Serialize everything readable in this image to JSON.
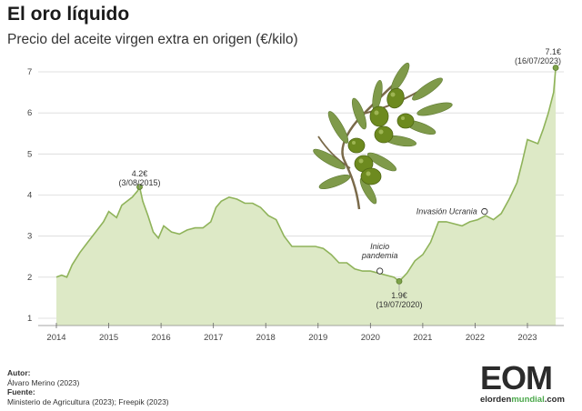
{
  "header": {
    "title": "El oro líquido",
    "subtitle": "Precio del aceite virgen extra en origen (€/kilo)"
  },
  "chart_data": {
    "type": "area",
    "title": "El oro líquido",
    "subtitle": "Precio del aceite virgen extra en origen (€/kilo)",
    "xlabel": "",
    "ylabel": "",
    "xlim": [
      2014,
      2023.55
    ],
    "ylim": [
      1,
      7.4
    ],
    "x_ticks": [
      "2014",
      "2015",
      "2016",
      "2017",
      "2018",
      "2019",
      "2020",
      "2021",
      "2022",
      "2023"
    ],
    "y_ticks": [
      "1",
      "2",
      "3",
      "4",
      "5",
      "6",
      "7"
    ],
    "grid": true,
    "fill_color": "#dde9c6",
    "line_color": "#8fb35a",
    "series": [
      {
        "x": [
          2014.0,
          2014.1,
          2014.2,
          2014.3,
          2014.45,
          2014.6,
          2014.75,
          2014.9,
          2015.0,
          2015.15,
          2015.25,
          2015.35,
          2015.45,
          2015.55,
          2015.59,
          2015.65,
          2015.75,
          2015.85,
          2015.95,
          2016.05,
          2016.2,
          2016.35,
          2016.5,
          2016.65,
          2016.8,
          2016.95,
          2017.05,
          2017.15,
          2017.3,
          2017.45,
          2017.6,
          2017.75,
          2017.9,
          2018.05,
          2018.2,
          2018.35,
          2018.5,
          2018.65,
          2018.8,
          2018.95,
          2019.1,
          2019.25,
          2019.4,
          2019.55,
          2019.7,
          2019.85,
          2020.0,
          2020.15,
          2020.3,
          2020.45,
          2020.55,
          2020.7,
          2020.85,
          2021.0,
          2021.15,
          2021.3,
          2021.45,
          2021.6,
          2021.75,
          2021.9,
          2022.05,
          2022.2,
          2022.35,
          2022.5,
          2022.65,
          2022.8,
          2022.9,
          2023.0,
          2023.1,
          2023.2,
          2023.3,
          2023.4,
          2023.5,
          2023.54
        ],
        "y": [
          2.0,
          2.05,
          2.0,
          2.3,
          2.6,
          2.85,
          3.1,
          3.35,
          3.6,
          3.45,
          3.75,
          3.85,
          3.95,
          4.1,
          4.2,
          3.85,
          3.5,
          3.1,
          2.95,
          3.25,
          3.1,
          3.05,
          3.15,
          3.2,
          3.2,
          3.35,
          3.7,
          3.85,
          3.95,
          3.9,
          3.8,
          3.8,
          3.7,
          3.5,
          3.4,
          3.0,
          2.75,
          2.75,
          2.75,
          2.75,
          2.7,
          2.55,
          2.35,
          2.35,
          2.2,
          2.15,
          2.15,
          2.1,
          2.05,
          2.0,
          1.9,
          2.1,
          2.4,
          2.55,
          2.85,
          3.35,
          3.35,
          3.3,
          3.25,
          3.35,
          3.4,
          3.5,
          3.4,
          3.55,
          3.9,
          4.3,
          4.8,
          5.35,
          5.3,
          5.25,
          5.6,
          6.0,
          6.5,
          7.1
        ]
      }
    ],
    "annotations": [
      {
        "x": 2015.59,
        "y": 4.2,
        "value": "4.2€",
        "date": "(3/08/2015)"
      },
      {
        "x": 2020.55,
        "y": 1.9,
        "value": "1.9€",
        "date": "(19/07/2020)"
      },
      {
        "x": 2023.54,
        "y": 7.1,
        "value": "7.1€",
        "date": "(16/07/2023)"
      }
    ],
    "events": [
      {
        "x": 2020.18,
        "y": 2.15,
        "line1": "Inicio",
        "line2": "pandemia"
      },
      {
        "x": 2022.18,
        "y": 3.6,
        "line1": "Invasión Ucrania"
      }
    ]
  },
  "footer": {
    "author_label": "Autor:",
    "author": "Álvaro Merino (2023)",
    "source_label": "Fuente:",
    "source": "Ministerio de Agricultura (2023); Freepik (2023)"
  },
  "logo": {
    "letters": "EOM",
    "site_a": "elorden",
    "site_b": "mundial",
    "site_c": ".com",
    "accent": "#4aa84a"
  },
  "illustration": {
    "icon": "olive-branch-icon",
    "leaf_color": "#7f9a4a",
    "olive_color": "#6d8a1f"
  }
}
